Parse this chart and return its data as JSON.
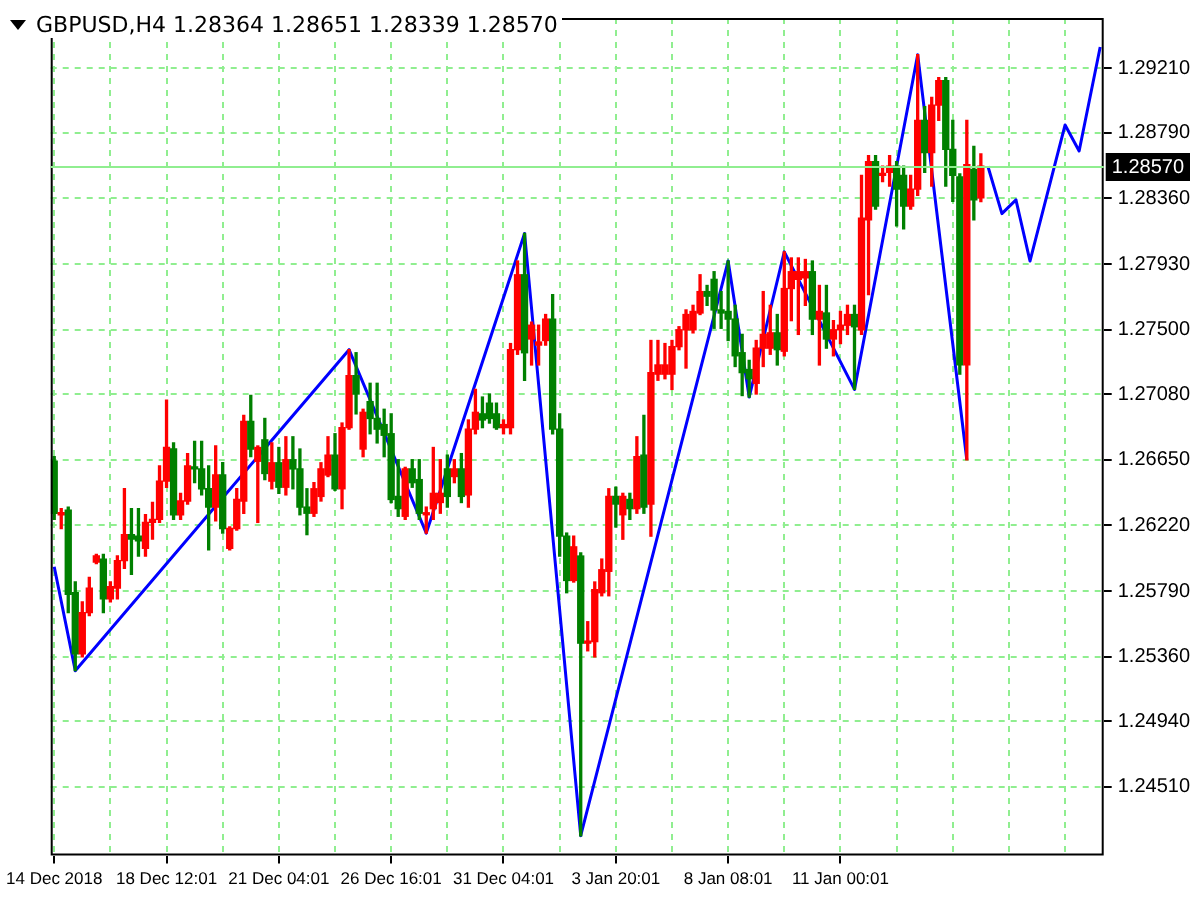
{
  "chart_data": {
    "type": "candlestick",
    "title": "GBPUSD,H4  1.28364 1.28651 1.28339 1.28570",
    "categories": [
      "14 Dec 2018",
      null,
      null,
      null,
      null,
      null,
      null,
      null,
      null,
      null,
      null,
      null,
      null,
      null,
      null,
      null,
      "18 Dec 12:01",
      null,
      null,
      null,
      null,
      null,
      null,
      null,
      null,
      null,
      null,
      null,
      null,
      null,
      null,
      null,
      "21 Dec 04:01",
      null,
      null,
      null,
      null,
      null,
      null,
      null,
      null,
      null,
      null,
      null,
      null,
      null,
      null,
      null,
      "26 Dec 16:01",
      null,
      null,
      null,
      null,
      null,
      null,
      null,
      null,
      null,
      null,
      null,
      null,
      null,
      null,
      null,
      "31 Dec 04:01",
      null,
      null,
      null,
      null,
      null,
      null,
      null,
      null,
      null,
      null,
      null,
      null,
      null,
      null,
      null,
      "3 Jan 20:01",
      null,
      null,
      null,
      null,
      null,
      null,
      null,
      null,
      null,
      null,
      null,
      null,
      null,
      null,
      null,
      "8 Jan 08:01",
      null,
      null,
      null,
      null,
      null,
      null,
      null,
      null,
      null,
      null,
      null,
      null,
      null,
      null,
      null,
      "11 Jan 00:01",
      null,
      null,
      null,
      null,
      null,
      null,
      null,
      null,
      null,
      null,
      null,
      null,
      null,
      null,
      null,
      null,
      null,
      null,
      null,
      null,
      null,
      null,
      null,
      null,
      null,
      null,
      null,
      null,
      null,
      null,
      null,
      null,
      null,
      null,
      null,
      null,
      null
    ],
    "ohlc": [
      [
        1.2664,
        1.2667,
        1.2626,
        1.263
      ],
      [
        1.2629,
        1.2633,
        1.262,
        1.263
      ],
      [
        1.2632,
        1.2634,
        1.2565,
        1.2577
      ],
      [
        1.2578,
        1.2585,
        1.2527,
        1.2538
      ],
      [
        1.2538,
        1.2572,
        1.2536,
        1.2565
      ],
      [
        1.2565,
        1.2588,
        1.2563,
        1.2581
      ],
      [
        1.2598,
        1.2603,
        1.2597,
        1.2602
      ],
      [
        1.26,
        1.2603,
        1.2565,
        1.2574
      ],
      [
        1.2574,
        1.2585,
        1.2572,
        1.2582
      ],
      [
        1.2581,
        1.2602,
        1.2574,
        1.2599
      ],
      [
        1.2599,
        1.2646,
        1.2594,
        1.2616
      ],
      [
        1.2616,
        1.2633,
        1.259,
        1.2613
      ],
      [
        1.2615,
        1.2633,
        1.2602,
        1.2612
      ],
      [
        1.2607,
        1.2629,
        1.2602,
        1.2624
      ],
      [
        1.2624,
        1.2637,
        1.2613,
        1.2626
      ],
      [
        1.2626,
        1.2661,
        1.2624,
        1.2651
      ],
      [
        1.2651,
        1.2704,
        1.2647,
        1.2673
      ],
      [
        1.2672,
        1.2676,
        1.2626,
        1.2629
      ],
      [
        1.2629,
        1.2643,
        1.2626,
        1.2638
      ],
      [
        1.2638,
        1.2669,
        1.2636,
        1.2661
      ],
      [
        1.266,
        1.2677,
        1.265,
        1.2659
      ],
      [
        1.2659,
        1.2677,
        1.2642,
        1.2646
      ],
      [
        1.2646,
        1.2661,
        1.2606,
        1.2634
      ],
      [
        1.2634,
        1.2674,
        1.2625,
        1.2655
      ],
      [
        1.2655,
        1.2663,
        1.2617,
        1.262
      ],
      [
        1.2607,
        1.2621,
        1.2606,
        1.262
      ],
      [
        1.262,
        1.2646,
        1.2619,
        1.2639
      ],
      [
        1.2638,
        1.2694,
        1.263,
        1.269
      ],
      [
        1.269,
        1.2707,
        1.2667,
        1.2672
      ],
      [
        1.2664,
        1.2674,
        1.2624,
        1.2673
      ],
      [
        1.2678,
        1.2692,
        1.2652,
        1.2656
      ],
      [
        1.2651,
        1.2676,
        1.2646,
        1.2663
      ],
      [
        1.2663,
        1.2673,
        1.2643,
        1.2647
      ],
      [
        1.2647,
        1.268,
        1.2642,
        1.2665
      ],
      [
        1.2665,
        1.268,
        1.2646,
        1.2659
      ],
      [
        1.2659,
        1.2672,
        1.2629,
        1.2634
      ],
      [
        1.2634,
        1.2646,
        1.2616,
        1.263
      ],
      [
        1.263,
        1.265,
        1.2628,
        1.2646
      ],
      [
        1.2641,
        1.2663,
        1.2638,
        1.2659
      ],
      [
        1.2655,
        1.268,
        1.2654,
        1.2668
      ],
      [
        1.2668,
        1.2682,
        1.2645,
        1.2646
      ],
      [
        1.2646,
        1.2689,
        1.2633,
        1.2686
      ],
      [
        1.2686,
        1.2737,
        1.2685,
        1.272
      ],
      [
        1.272,
        1.2735,
        1.2695,
        1.2708
      ],
      [
        1.2672,
        1.2698,
        1.2667,
        1.2696
      ],
      [
        1.2703,
        1.2715,
        1.2682,
        1.2692
      ],
      [
        1.2692,
        1.2715,
        1.2676,
        1.2685
      ],
      [
        1.2688,
        1.2698,
        1.2667,
        1.2681
      ],
      [
        1.2682,
        1.2695,
        1.2637,
        1.2639
      ],
      [
        1.2641,
        1.2665,
        1.2628,
        1.2633
      ],
      [
        1.2628,
        1.266,
        1.2626,
        1.2659
      ],
      [
        1.2659,
        1.2665,
        1.2647,
        1.265
      ],
      [
        1.2652,
        1.2665,
        1.2626,
        1.263
      ],
      [
        1.2629,
        1.2634,
        1.2617,
        1.263
      ],
      [
        1.2633,
        1.2673,
        1.2626,
        1.2643
      ],
      [
        1.2637,
        1.2665,
        1.263,
        1.2643
      ],
      [
        1.2659,
        1.2668,
        1.2634,
        1.2641
      ],
      [
        1.2654,
        1.2665,
        1.265,
        1.2659
      ],
      [
        1.2659,
        1.2669,
        1.2637,
        1.2641
      ],
      [
        1.2642,
        1.2691,
        1.2634,
        1.2685
      ],
      [
        1.2685,
        1.2711,
        1.2682,
        1.2696
      ],
      [
        1.2695,
        1.2706,
        1.2686,
        1.2691
      ],
      [
        1.2702,
        1.2708,
        1.2689,
        1.2692
      ],
      [
        1.2695,
        1.2702,
        1.2685,
        1.2686
      ],
      [
        1.2686,
        1.2691,
        1.2682,
        1.2688
      ],
      [
        1.2686,
        1.2741,
        1.2682,
        1.2737
      ],
      [
        1.2737,
        1.2795,
        1.2734,
        1.2786
      ],
      [
        1.2786,
        1.2813,
        1.2717,
        1.2735
      ],
      [
        1.2744,
        1.2755,
        1.2727,
        1.2753
      ],
      [
        1.274,
        1.2753,
        1.2727,
        1.2742
      ],
      [
        1.2743,
        1.276,
        1.274,
        1.2757
      ],
      [
        1.2757,
        1.2773,
        1.2682,
        1.2685
      ],
      [
        1.2685,
        1.2695,
        1.2602,
        1.2615
      ],
      [
        1.2615,
        1.2617,
        1.2578,
        1.2586
      ],
      [
        1.2586,
        1.2615,
        1.2585,
        1.2608
      ],
      [
        1.2602,
        1.2604,
        1.2419,
        1.2545
      ],
      [
        1.2545,
        1.2559,
        1.254,
        1.2546
      ],
      [
        1.2546,
        1.2585,
        1.2536,
        1.258
      ],
      [
        1.2578,
        1.26,
        1.2576,
        1.2593
      ],
      [
        1.2592,
        1.2646,
        1.2576,
        1.2641
      ],
      [
        1.2641,
        1.2647,
        1.2621,
        1.2636
      ],
      [
        1.2629,
        1.2643,
        1.2613,
        1.2641
      ],
      [
        1.2639,
        1.2643,
        1.2626,
        1.2633
      ],
      [
        1.2633,
        1.268,
        1.263,
        1.2667
      ],
      [
        1.2668,
        1.2694,
        1.263,
        1.2634
      ],
      [
        1.2636,
        1.2743,
        1.2615,
        1.2722
      ],
      [
        1.2721,
        1.2743,
        1.2717,
        1.2727
      ],
      [
        1.2721,
        1.2741,
        1.2718,
        1.2727
      ],
      [
        1.2721,
        1.2743,
        1.2711,
        1.2739
      ],
      [
        1.2739,
        1.2752,
        1.2737,
        1.275
      ],
      [
        1.275,
        1.2763,
        1.2725,
        1.276
      ],
      [
        1.275,
        1.2766,
        1.2748,
        1.2762
      ],
      [
        1.2761,
        1.2786,
        1.276,
        1.2775
      ],
      [
        1.2775,
        1.2779,
        1.2766,
        1.2772
      ],
      [
        1.2783,
        1.2788,
        1.2751,
        1.2763
      ],
      [
        1.2763,
        1.2775,
        1.2751,
        1.2761
      ],
      [
        1.2762,
        1.2795,
        1.2743,
        1.2757
      ],
      [
        1.2757,
        1.2766,
        1.2726,
        1.2733
      ],
      [
        1.2735,
        1.2747,
        1.2707,
        1.2722
      ],
      [
        1.2724,
        1.273,
        1.2706,
        1.2718
      ],
      [
        1.2715,
        1.2743,
        1.2708,
        1.2738
      ],
      [
        1.2738,
        1.2775,
        1.2726,
        1.2747
      ],
      [
        1.2738,
        1.2766,
        1.2734,
        1.2748
      ],
      [
        1.2748,
        1.276,
        1.2727,
        1.2737
      ],
      [
        1.2736,
        1.2801,
        1.2733,
        1.2777
      ],
      [
        1.2777,
        1.2797,
        1.2756,
        1.2788
      ],
      [
        1.2783,
        1.2797,
        1.2747,
        1.2788
      ],
      [
        1.2784,
        1.2796,
        1.2766,
        1.2788
      ],
      [
        1.2788,
        1.2795,
        1.2747,
        1.2757
      ],
      [
        1.2757,
        1.2779,
        1.2727,
        1.2762
      ],
      [
        1.2761,
        1.2779,
        1.2738,
        1.2744
      ],
      [
        1.2744,
        1.2756,
        1.2733,
        1.275
      ],
      [
        1.275,
        1.2762,
        1.2741,
        1.2753
      ],
      [
        1.2753,
        1.2766,
        1.2747,
        1.276
      ],
      [
        1.276,
        1.2766,
        1.2711,
        1.2752
      ],
      [
        1.275,
        1.2851,
        1.2747,
        1.2823
      ],
      [
        1.2822,
        1.2864,
        1.2773,
        1.286
      ],
      [
        1.286,
        1.2864,
        1.2829,
        1.2831
      ],
      [
        1.2851,
        1.2857,
        1.2847,
        1.2852
      ],
      [
        1.2853,
        1.2864,
        1.2844,
        1.2857
      ],
      [
        1.2857,
        1.286,
        1.2818,
        1.2842
      ],
      [
        1.2851,
        1.2857,
        1.2816,
        1.2831
      ],
      [
        1.2831,
        1.2851,
        1.2829,
        1.2842
      ],
      [
        1.2842,
        1.293,
        1.2838,
        1.2887
      ],
      [
        1.2887,
        1.2896,
        1.2853,
        1.2866
      ],
      [
        1.2866,
        1.2902,
        1.2844,
        1.2897
      ],
      [
        1.2897,
        1.2915,
        1.2887,
        1.2913
      ],
      [
        1.2913,
        1.2915,
        1.2844,
        1.2868
      ],
      [
        1.2868,
        1.2887,
        1.2834,
        1.2851
      ],
      [
        1.285,
        1.2852,
        1.2721,
        1.2727
      ],
      [
        1.2727,
        1.2887,
        1.2665,
        1.2858
      ],
      [
        1.2855,
        1.287,
        1.2822,
        1.2835
      ],
      [
        1.28364,
        1.28651,
        1.28339,
        1.2857
      ],
      null,
      null,
      null,
      null,
      null,
      null,
      null,
      null,
      null,
      null,
      null,
      null,
      null,
      null,
      null,
      null,
      null
    ],
    "colors": [
      "#008000",
      "#ff0000",
      "#008000",
      "#008000",
      "#ff0000",
      "#ff0000",
      "#ff0000",
      "#008000",
      "#ff0000",
      "#ff0000",
      "#ff0000",
      "#008000",
      "#008000",
      "#ff0000",
      "#ff0000",
      "#ff0000",
      "#ff0000",
      "#008000",
      "#ff0000",
      "#ff0000",
      "#008000",
      "#008000",
      "#008000",
      "#ff0000",
      "#008000",
      "#ff0000",
      "#ff0000",
      "#ff0000",
      "#008000",
      "#ff0000",
      "#008000",
      "#ff0000",
      "#008000",
      "#ff0000",
      "#008000",
      "#008000",
      "#008000",
      "#ff0000",
      "#ff0000",
      "#ff0000",
      "#008000",
      "#ff0000",
      "#ff0000",
      "#008000",
      "#ff0000",
      "#008000",
      "#008000",
      "#008000",
      "#008000",
      "#008000",
      "#ff0000",
      "#008000",
      "#008000",
      "#ff0000",
      "#ff0000",
      "#ff0000",
      "#008000",
      "#ff0000",
      "#008000",
      "#ff0000",
      "#ff0000",
      "#008000",
      "#008000",
      "#008000",
      "#ff0000",
      "#ff0000",
      "#ff0000",
      "#008000",
      "#ff0000",
      "#ff0000",
      "#ff0000",
      "#008000",
      "#008000",
      "#008000",
      "#ff0000",
      "#008000",
      "#ff0000",
      "#ff0000",
      "#ff0000",
      "#ff0000",
      "#008000",
      "#ff0000",
      "#008000",
      "#ff0000",
      "#008000",
      "#ff0000",
      "#ff0000",
      "#ff0000",
      "#ff0000",
      "#ff0000",
      "#ff0000",
      "#ff0000",
      "#ff0000",
      "#008000",
      "#008000",
      "#008000",
      "#008000",
      "#008000",
      "#008000",
      "#008000",
      "#ff0000",
      "#ff0000",
      "#ff0000",
      "#008000",
      "#ff0000",
      "#ff0000",
      "#ff0000",
      "#ff0000",
      "#008000",
      "#ff0000",
      "#008000",
      "#ff0000",
      "#ff0000",
      "#ff0000",
      "#008000",
      "#ff0000",
      "#ff0000",
      "#008000",
      "#ff0000",
      "#ff0000",
      "#008000",
      "#008000",
      "#ff0000",
      "#ff0000",
      "#008000",
      "#ff0000",
      "#ff0000",
      "#008000",
      "#008000",
      "#008000",
      "#ff0000",
      "#008000",
      "#ff0000",
      null,
      null,
      null,
      null,
      null,
      null,
      null,
      null,
      null,
      null,
      null,
      null,
      null,
      null,
      null,
      null,
      null
    ],
    "series": [
      {
        "type": "line",
        "color": "#0000ff",
        "values": [
          1.2595,
          null,
          null,
          1.2527,
          null,
          null,
          null,
          null,
          null,
          null,
          null,
          null,
          null,
          null,
          null,
          null,
          null,
          null,
          null,
          null,
          null,
          null,
          null,
          null,
          null,
          null,
          null,
          null,
          null,
          null,
          null,
          null,
          null,
          null,
          null,
          null,
          null,
          null,
          null,
          null,
          null,
          null,
          1.2737,
          null,
          null,
          null,
          null,
          null,
          null,
          null,
          null,
          null,
          null,
          1.2617,
          null,
          null,
          null,
          null,
          null,
          null,
          null,
          null,
          null,
          null,
          null,
          null,
          null,
          1.2813,
          null,
          null,
          null,
          null,
          null,
          null,
          null,
          1.2419,
          null,
          null,
          null,
          null,
          null,
          null,
          null,
          null,
          null,
          null,
          null,
          null,
          null,
          null,
          null,
          null,
          null,
          null,
          null,
          null,
          1.2795,
          null,
          null,
          1.2706,
          null,
          null,
          null,
          null,
          1.2801,
          null,
          null,
          null,
          null,
          null,
          null,
          null,
          null,
          null,
          1.2711,
          null,
          null,
          null,
          null,
          null,
          null,
          null,
          null,
          1.293,
          null,
          null,
          null,
          null,
          null,
          null,
          1.2665,
          null,
          null,
          null,
          null,
          null,
          null,
          null,
          null,
          null,
          null,
          null,
          null,
          null,
          null,
          null,
          null,
          null,
          null,
          null
        ]
      },
      {
        "type": "line",
        "color": "#0000ff",
        "values": [
          null,
          null,
          null,
          null,
          null,
          null,
          null,
          null,
          null,
          null,
          null,
          null,
          null,
          null,
          null,
          null,
          null,
          null,
          null,
          null,
          null,
          null,
          null,
          null,
          null,
          null,
          null,
          null,
          null,
          null,
          null,
          null,
          null,
          null,
          null,
          null,
          null,
          null,
          null,
          null,
          null,
          null,
          null,
          null,
          null,
          null,
          null,
          null,
          null,
          null,
          null,
          null,
          null,
          null,
          null,
          null,
          null,
          null,
          null,
          null,
          null,
          null,
          null,
          null,
          null,
          null,
          null,
          null,
          null,
          null,
          null,
          null,
          null,
          null,
          null,
          null,
          null,
          null,
          null,
          null,
          null,
          null,
          null,
          null,
          null,
          null,
          null,
          null,
          null,
          null,
          null,
          null,
          null,
          null,
          null,
          null,
          null,
          null,
          null,
          null,
          null,
          null,
          null,
          null,
          null,
          null,
          null,
          null,
          null,
          null,
          null,
          null,
          null,
          null,
          null,
          null,
          null,
          null,
          null,
          null,
          null,
          null,
          null,
          null,
          null,
          null,
          null,
          null,
          null,
          null,
          null,
          null,
          null,
          1.2857,
          null,
          1.2826,
          null,
          1.2835,
          null,
          1.2795,
          null,
          null,
          null,
          null,
          1.2884,
          null,
          1.2867,
          null,
          null,
          1.2935
        ]
      }
    ],
    "ylim": [
      1.2406,
      1.2954
    ],
    "yticks": [
      {
        "value": 1.2921,
        "label": "1.29210"
      },
      {
        "value": 1.2879,
        "label": "1.28790"
      },
      {
        "value": 1.2836,
        "label": "1.28360"
      },
      {
        "value": 1.2793,
        "label": "1.27930"
      },
      {
        "value": 1.275,
        "label": "1.27500"
      },
      {
        "value": 1.2708,
        "label": "1.27080"
      },
      {
        "value": 1.2665,
        "label": "1.26650"
      },
      {
        "value": 1.2622,
        "label": "1.26220"
      },
      {
        "value": 1.2579,
        "label": "1.25790"
      },
      {
        "value": 1.2536,
        "label": "1.25360"
      },
      {
        "value": 1.2494,
        "label": "1.24940"
      },
      {
        "value": 1.2451,
        "label": "1.24510"
      }
    ],
    "ref_lines": [
      {
        "axis": "y",
        "value": 1.2857,
        "label": "1.28570",
        "color": "#90ee90"
      }
    ],
    "grid": true,
    "legend": false,
    "marker": "none"
  }
}
